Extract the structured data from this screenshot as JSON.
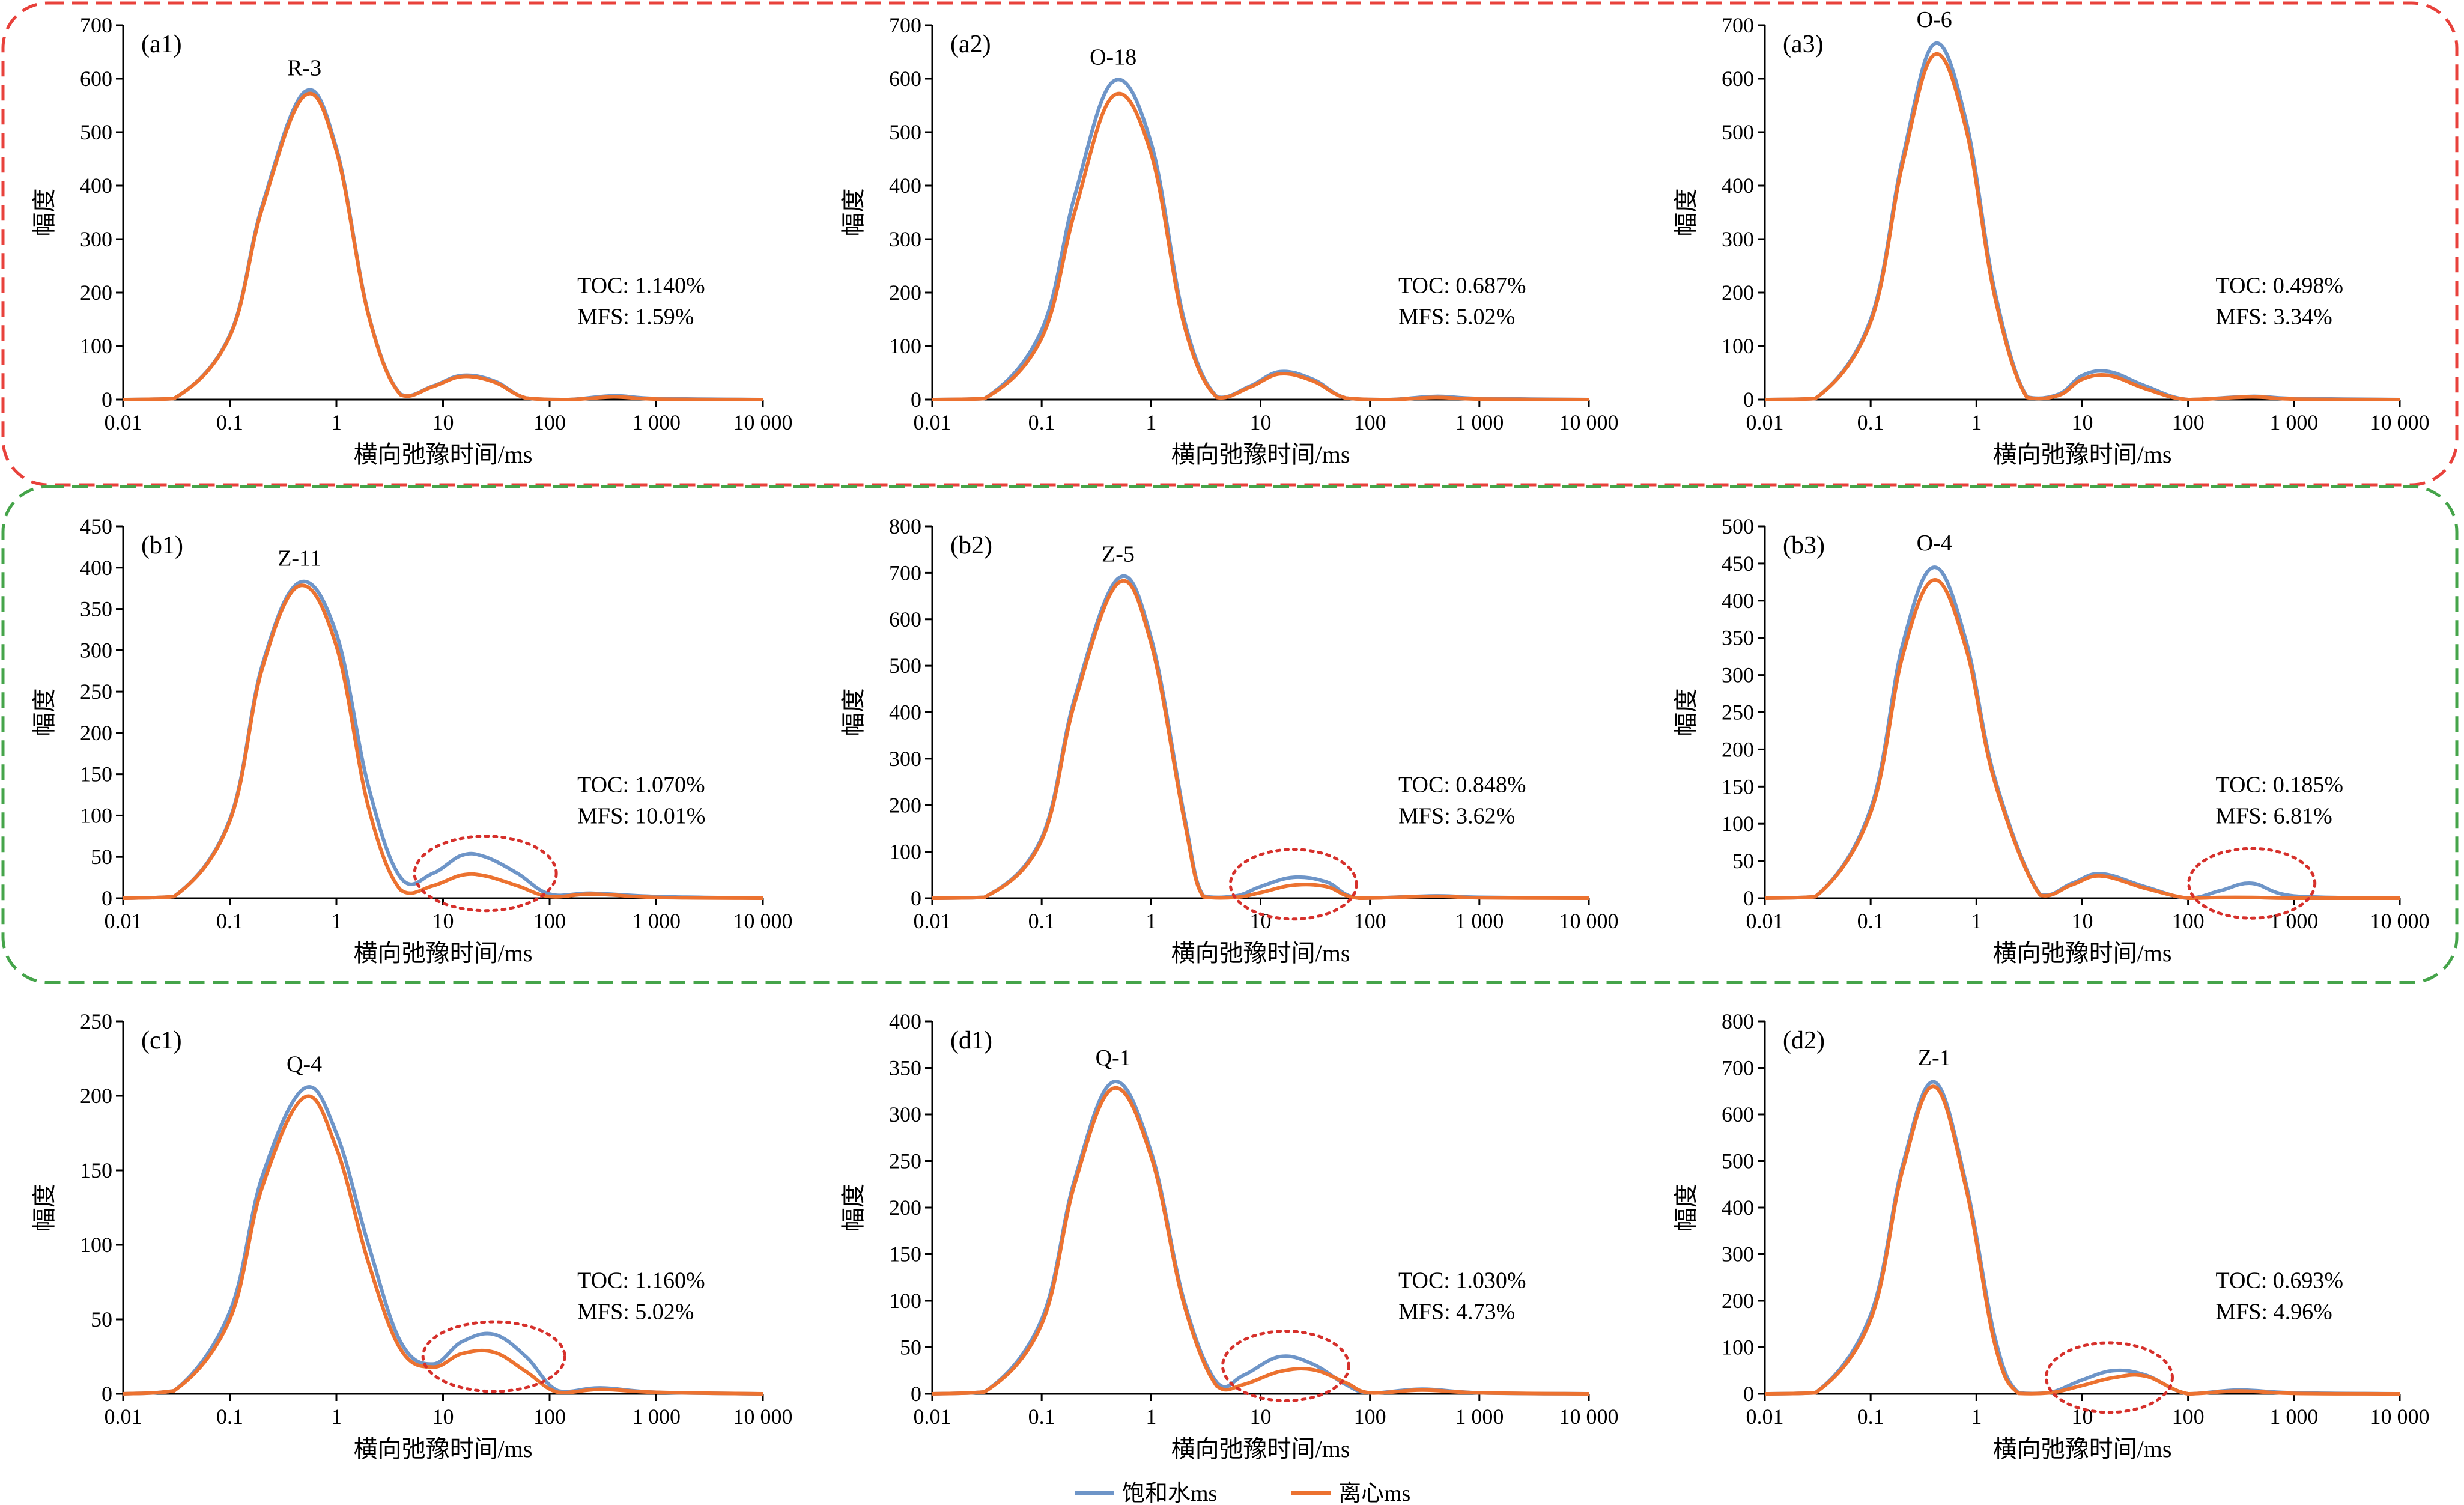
{
  "figure": {
    "x_axis_title": "横向弛豫时间/ms",
    "y_axis_title": "幅度",
    "legend": [
      {
        "name": "饱和水ms",
        "color": "#6e95c8"
      },
      {
        "name": "离心ms",
        "color": "#ec7230"
      }
    ],
    "group_box_colors": {
      "red": "#e8413b",
      "green": "#45a44a"
    }
  },
  "chart_data": [
    {
      "type": "line",
      "panel": "(a1)",
      "sample": "R-3",
      "xscale": "log",
      "xlim": [
        0.01,
        10000
      ],
      "x_ticks": [
        "0.01",
        "0.1",
        "1",
        "10",
        "100",
        "1 000",
        "10 000"
      ],
      "ylim": [
        0,
        700
      ],
      "y_ticks": [
        "0",
        "100",
        "200",
        "300",
        "400",
        "500",
        "600",
        "700"
      ],
      "xlabel": "横向弛豫时间/ms",
      "ylabel": "幅度",
      "notes": [
        "TOC: 1.140%",
        "MFS: 1.59%"
      ],
      "series": [
        {
          "name": "饱和水ms",
          "x": [
            0.01,
            0.03,
            0.1,
            0.2,
            0.5,
            1,
            2,
            4,
            8,
            15,
            30,
            60,
            150,
            400,
            1000,
            10000
          ],
          "values": [
            0,
            2,
            120,
            360,
            575,
            470,
            160,
            10,
            25,
            45,
            35,
            3,
            0,
            7,
            2,
            0
          ]
        },
        {
          "name": "离心ms",
          "x": [
            0.01,
            0.03,
            0.1,
            0.2,
            0.5,
            1,
            2,
            4,
            8,
            15,
            30,
            60,
            150,
            400,
            1000,
            10000
          ],
          "values": [
            0,
            2,
            118,
            355,
            568,
            465,
            158,
            9,
            24,
            43,
            33,
            3,
            0,
            5,
            1,
            0
          ]
        }
      ]
    },
    {
      "type": "line",
      "panel": "(a2)",
      "sample": "O-18",
      "xscale": "log",
      "xlim": [
        0.01,
        10000
      ],
      "x_ticks": [
        "0.01",
        "0.1",
        "1",
        "10",
        "100",
        "1 000",
        "10 000"
      ],
      "ylim": [
        0,
        700
      ],
      "y_ticks": [
        "0",
        "100",
        "200",
        "300",
        "400",
        "500",
        "600",
        "700"
      ],
      "xlabel": "横向弛豫时间/ms",
      "ylabel": "幅度",
      "notes": [
        "TOC: 0.687%",
        "MFS: 5.02%"
      ],
      "series": [
        {
          "name": "饱和水ms",
          "x": [
            0.01,
            0.03,
            0.1,
            0.2,
            0.45,
            1,
            2,
            4,
            8,
            15,
            30,
            60,
            150,
            400,
            1000,
            10000
          ],
          "values": [
            0,
            2,
            130,
            380,
            595,
            480,
            150,
            5,
            25,
            52,
            38,
            3,
            0,
            6,
            2,
            0
          ]
        },
        {
          "name": "离心ms",
          "x": [
            0.01,
            0.03,
            0.1,
            0.2,
            0.45,
            1,
            2,
            4,
            8,
            15,
            30,
            60,
            150,
            400,
            1000,
            10000
          ],
          "values": [
            0,
            2,
            115,
            350,
            568,
            460,
            140,
            4,
            23,
            48,
            35,
            3,
            0,
            4,
            1,
            0
          ]
        }
      ]
    },
    {
      "type": "line",
      "panel": "(a3)",
      "sample": "O-6",
      "xscale": "log",
      "xlim": [
        0.01,
        10000
      ],
      "x_ticks": [
        "0.01",
        "0.1",
        "1",
        "10",
        "100",
        "1 000",
        "10 000"
      ],
      "ylim": [
        0,
        700
      ],
      "y_ticks": [
        "0",
        "100",
        "200",
        "300",
        "400",
        "500",
        "600",
        "700"
      ],
      "xlabel": "横向弛豫时间/ms",
      "ylabel": "幅度",
      "notes": [
        "TOC: 0.498%",
        "MFS: 3.34%"
      ],
      "series": [
        {
          "name": "饱和水ms",
          "x": [
            0.01,
            0.03,
            0.1,
            0.2,
            0.4,
            0.8,
            1.5,
            3,
            6,
            10,
            18,
            40,
            100,
            400,
            1000,
            10000
          ],
          "values": [
            0,
            2,
            150,
            450,
            665,
            520,
            200,
            5,
            10,
            45,
            52,
            25,
            0,
            6,
            2,
            0
          ]
        },
        {
          "name": "离心ms",
          "x": [
            0.01,
            0.03,
            0.1,
            0.2,
            0.4,
            0.8,
            1.5,
            3,
            6,
            10,
            18,
            40,
            100,
            400,
            1000,
            10000
          ],
          "values": [
            0,
            2,
            145,
            440,
            645,
            505,
            190,
            4,
            8,
            38,
            45,
            20,
            0,
            5,
            1,
            0
          ]
        }
      ]
    },
    {
      "type": "line",
      "panel": "(b1)",
      "sample": "Z-11",
      "xscale": "log",
      "xlim": [
        0.01,
        10000
      ],
      "x_ticks": [
        "0.01",
        "0.1",
        "1",
        "10",
        "100",
        "1 000",
        "10 000"
      ],
      "ylim": [
        0,
        450
      ],
      "y_ticks": [
        "0",
        "50",
        "100",
        "150",
        "200",
        "250",
        "300",
        "350",
        "400",
        "450"
      ],
      "xlabel": "横向弛豫时间/ms",
      "ylabel": "幅度",
      "notes": [
        "TOC: 1.070%",
        "MFS: 10.01%"
      ],
      "series": [
        {
          "name": "饱和水ms",
          "x": [
            0.01,
            0.03,
            0.1,
            0.2,
            0.45,
            1,
            2,
            4,
            8,
            15,
            25,
            50,
            100,
            250,
            1000,
            10000
          ],
          "values": [
            0,
            2,
            95,
            280,
            382,
            320,
            135,
            25,
            30,
            52,
            50,
            30,
            5,
            6,
            2,
            0
          ]
        },
        {
          "name": "离心ms",
          "x": [
            0.01,
            0.03,
            0.1,
            0.2,
            0.45,
            1,
            2,
            4,
            8,
            15,
            25,
            50,
            100,
            250,
            1000,
            10000
          ],
          "values": [
            0,
            2,
            93,
            276,
            378,
            305,
            110,
            10,
            15,
            28,
            27,
            15,
            2,
            5,
            1,
            0
          ]
        }
      ]
    },
    {
      "type": "line",
      "panel": "(b2)",
      "sample": "Z-5",
      "xscale": "log",
      "xlim": [
        0.01,
        10000
      ],
      "x_ticks": [
        "0.01",
        "0.1",
        "1",
        "10",
        "100",
        "1 000",
        "10 000"
      ],
      "ylim": [
        0,
        800
      ],
      "y_ticks": [
        "0",
        "100",
        "200",
        "300",
        "400",
        "500",
        "600",
        "700",
        "800"
      ],
      "xlabel": "横向弛豫时间/ms",
      "ylabel": "幅度",
      "notes": [
        "TOC: 0.848%",
        "MFS: 3.62%"
      ],
      "series": [
        {
          "name": "饱和水ms",
          "x": [
            0.01,
            0.03,
            0.1,
            0.2,
            0.5,
            1,
            2,
            3,
            6,
            10,
            20,
            40,
            80,
            400,
            1000,
            10000
          ],
          "values": [
            0,
            2,
            130,
            430,
            688,
            560,
            180,
            5,
            5,
            25,
            45,
            35,
            0,
            5,
            2,
            0
          ]
        },
        {
          "name": "离心ms",
          "x": [
            0.01,
            0.03,
            0.1,
            0.2,
            0.5,
            1,
            2,
            3,
            6,
            10,
            20,
            40,
            80,
            400,
            1000,
            10000
          ],
          "values": [
            0,
            2,
            125,
            420,
            678,
            548,
            170,
            3,
            2,
            12,
            28,
            25,
            0,
            4,
            1,
            0
          ]
        }
      ]
    },
    {
      "type": "line",
      "panel": "(b3)",
      "sample": "O-4",
      "xscale": "log",
      "xlim": [
        0.01,
        10000
      ],
      "x_ticks": [
        "0.01",
        "0.1",
        "1",
        "10",
        "100",
        "1 000",
        "10 000"
      ],
      "ylim": [
        0,
        500
      ],
      "y_ticks": [
        "0",
        "50",
        "100",
        "150",
        "200",
        "250",
        "300",
        "350",
        "400",
        "450",
        "500"
      ],
      "xlabel": "横向弛豫时间/ms",
      "ylabel": "幅度",
      "notes": [
        "TOC: 0.185%",
        "MFS: 6.81%"
      ],
      "series": [
        {
          "name": "饱和水ms",
          "x": [
            0.01,
            0.03,
            0.1,
            0.2,
            0.4,
            0.8,
            1.5,
            4,
            8,
            15,
            40,
            100,
            200,
            400,
            1000,
            10000
          ],
          "values": [
            0,
            2,
            120,
            340,
            445,
            345,
            160,
            5,
            20,
            33,
            15,
            0,
            10,
            20,
            3,
            0
          ]
        },
        {
          "name": "离心ms",
          "x": [
            0.01,
            0.03,
            0.1,
            0.2,
            0.4,
            0.8,
            1.5,
            4,
            8,
            15,
            40,
            100,
            200,
            400,
            1000,
            10000
          ],
          "values": [
            0,
            2,
            115,
            325,
            428,
            335,
            155,
            4,
            18,
            30,
            13,
            0,
            1,
            1,
            0,
            0
          ]
        }
      ]
    },
    {
      "type": "line",
      "panel": "(c1)",
      "sample": "Q-4",
      "xscale": "log",
      "xlim": [
        0.01,
        10000
      ],
      "x_ticks": [
        "0.01",
        "0.1",
        "1",
        "10",
        "100",
        "1 000",
        "10 000"
      ],
      "ylim": [
        0,
        250
      ],
      "y_ticks": [
        "0",
        "50",
        "100",
        "150",
        "200",
        "250"
      ],
      "xlabel": "横向弛豫时间/ms",
      "ylabel": "幅度",
      "notes": [
        "TOC: 1.160%",
        "MFS: 5.02%"
      ],
      "series": [
        {
          "name": "饱和水ms",
          "x": [
            0.01,
            0.03,
            0.1,
            0.2,
            0.5,
            1,
            2,
            4,
            8,
            15,
            30,
            60,
            120,
            300,
            1000,
            10000
          ],
          "values": [
            0,
            2,
            55,
            145,
            205,
            175,
            100,
            35,
            20,
            35,
            40,
            25,
            2,
            4,
            1,
            0
          ]
        },
        {
          "name": "离心ms",
          "x": [
            0.01,
            0.03,
            0.1,
            0.2,
            0.5,
            1,
            2,
            4,
            8,
            15,
            30,
            60,
            120,
            300,
            1000,
            10000
          ],
          "values": [
            0,
            2,
            50,
            138,
            199,
            165,
            88,
            30,
            18,
            27,
            28,
            15,
            1,
            3,
            1,
            0
          ]
        }
      ]
    },
    {
      "type": "line",
      "panel": "(d1)",
      "sample": "Q-1",
      "xscale": "log",
      "xlim": [
        0.01,
        10000
      ],
      "x_ticks": [
        "0.01",
        "0.1",
        "1",
        "10",
        "100",
        "1 000",
        "10 000"
      ],
      "ylim": [
        0,
        400
      ],
      "y_ticks": [
        "0",
        "50",
        "100",
        "150",
        "200",
        "250",
        "300",
        "350",
        "400"
      ],
      "xlabel": "横向弛豫时间/ms",
      "ylabel": "幅度",
      "notes": [
        "TOC: 1.030%",
        "MFS: 4.73%"
      ],
      "series": [
        {
          "name": "饱和水ms",
          "x": [
            0.01,
            0.03,
            0.1,
            0.2,
            0.45,
            1,
            2,
            4,
            7,
            15,
            30,
            60,
            100,
            300,
            1000,
            10000
          ],
          "values": [
            0,
            2,
            80,
            230,
            335,
            260,
            100,
            12,
            20,
            40,
            32,
            10,
            1,
            5,
            1,
            0
          ]
        },
        {
          "name": "离心ms",
          "x": [
            0.01,
            0.03,
            0.1,
            0.2,
            0.45,
            1,
            2,
            4,
            7,
            15,
            30,
            60,
            100,
            300,
            1000,
            10000
          ],
          "values": [
            0,
            2,
            75,
            225,
            328,
            255,
            96,
            8,
            10,
            24,
            26,
            12,
            1,
            4,
            1,
            0
          ]
        }
      ]
    },
    {
      "type": "line",
      "panel": "(d2)",
      "sample": "Z-1",
      "xscale": "log",
      "xlim": [
        0.01,
        10000
      ],
      "x_ticks": [
        "0.01",
        "0.1",
        "1",
        "10",
        "100",
        "1 000",
        "10 000"
      ],
      "ylim": [
        0,
        800
      ],
      "y_ticks": [
        "0",
        "100",
        "200",
        "300",
        "400",
        "500",
        "600",
        "700",
        "800"
      ],
      "xlabel": "横向弛豫时间/ms",
      "ylabel": "幅度",
      "notes": [
        "TOC: 0.693%",
        "MFS: 4.96%"
      ],
      "series": [
        {
          "name": "饱和水ms",
          "x": [
            0.01,
            0.03,
            0.1,
            0.2,
            0.4,
            0.8,
            1.5,
            2.5,
            5,
            10,
            20,
            40,
            100,
            300,
            1000,
            10000
          ],
          "values": [
            0,
            2,
            170,
            490,
            670,
            450,
            120,
            2,
            3,
            30,
            50,
            40,
            0,
            8,
            2,
            0
          ]
        },
        {
          "name": "离心ms",
          "x": [
            0.01,
            0.03,
            0.1,
            0.2,
            0.4,
            0.8,
            1.5,
            2.5,
            5,
            10,
            20,
            40,
            100,
            300,
            1000,
            10000
          ],
          "values": [
            0,
            2,
            160,
            480,
            660,
            440,
            105,
            1,
            2,
            18,
            35,
            38,
            0,
            6,
            1,
            0
          ]
        }
      ]
    }
  ]
}
